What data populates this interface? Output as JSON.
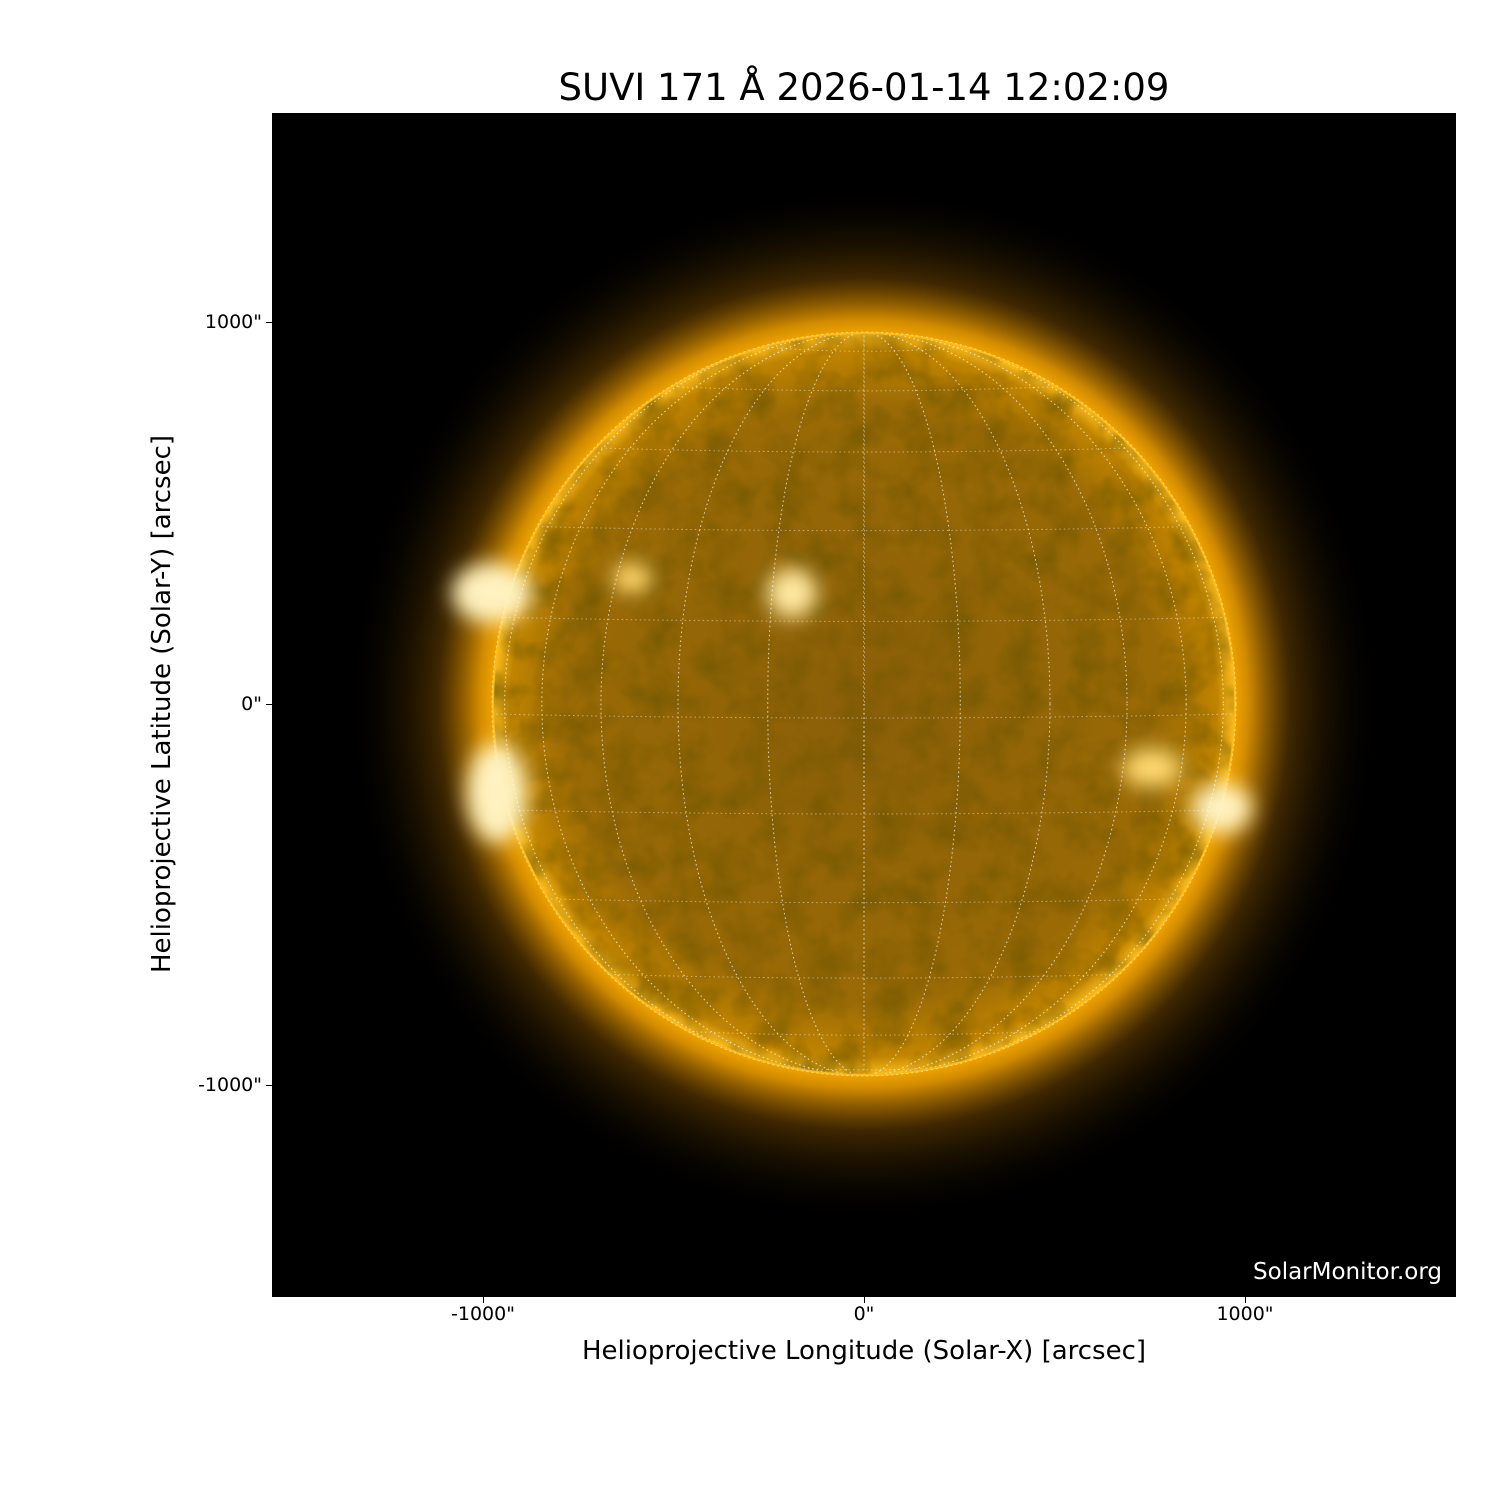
{
  "title": "SUVI 171 Å 2026-01-14 12:02:09",
  "xlabel": "Helioprojective Longitude (Solar-X) [arcsec]",
  "ylabel": "Helioprojective Latitude (Solar-Y) [arcsec]",
  "xticks": [
    "-1000\"",
    "0\"",
    "1000\""
  ],
  "yticks": [
    "1000\"",
    "0\"",
    "-1000\""
  ],
  "watermark": "SolarMonitor.org",
  "colors": {
    "sun": "#e0a000",
    "corona": "#ffb000",
    "background": "#000000"
  }
}
